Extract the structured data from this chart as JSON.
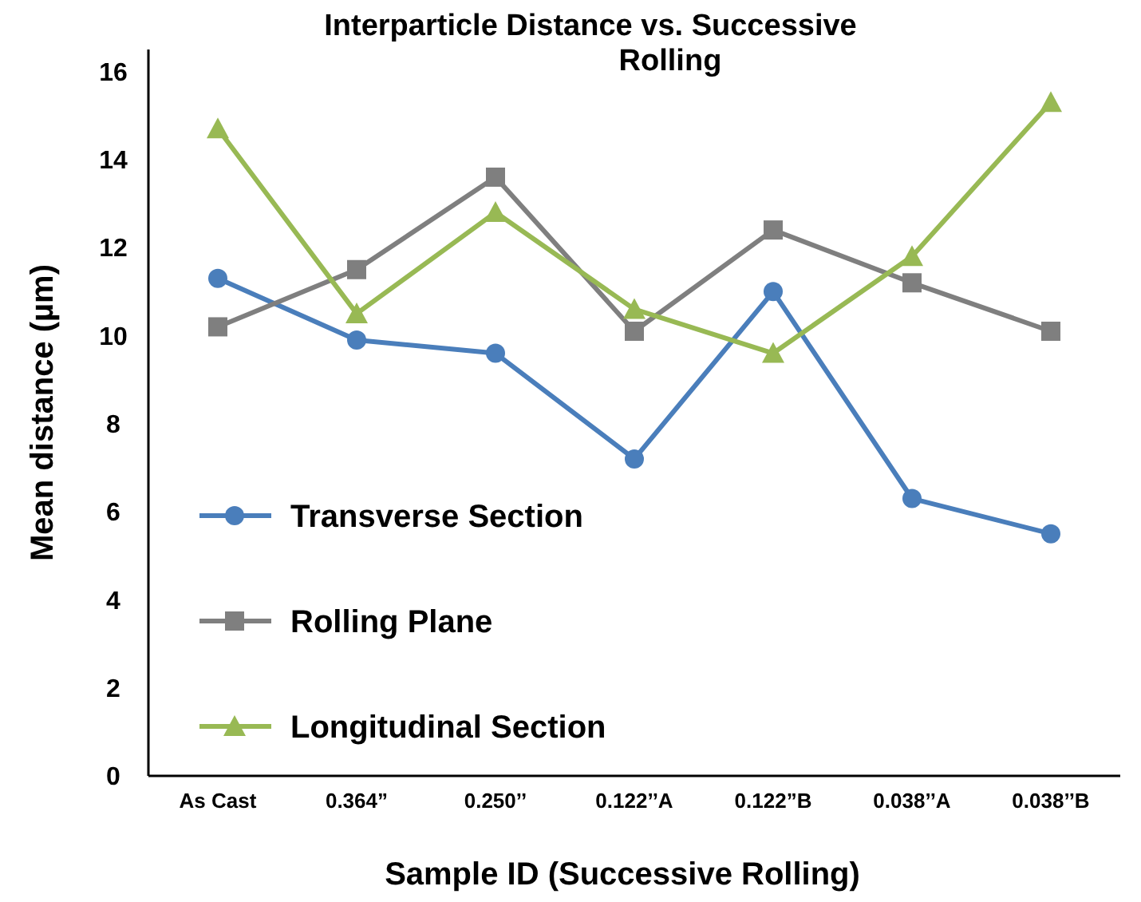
{
  "chart_data": {
    "type": "line",
    "title": "Interparticle Distance vs. Successive Rolling",
    "xlabel": "Sample ID (Successive Rolling)",
    "ylabel": "Mean distance (µm)",
    "categories": [
      "As Cast",
      "0.364”",
      "0.250’’",
      "0.122’’A",
      "0.122”B",
      "0.038’’A",
      "0.038’’B"
    ],
    "series": [
      {
        "name": "Transverse Section",
        "color": "#4a7ebb",
        "marker": "circle",
        "values": [
          11.3,
          9.9,
          9.6,
          7.2,
          11.0,
          6.3,
          5.5
        ]
      },
      {
        "name": "Rolling Plane",
        "color": "#7f7f7f",
        "marker": "square",
        "values": [
          10.2,
          11.5,
          13.6,
          10.1,
          12.4,
          11.2,
          10.1
        ]
      },
      {
        "name": "Longitudinal Section",
        "color": "#98b954",
        "marker": "triangle",
        "values": [
          14.7,
          10.5,
          12.8,
          10.6,
          9.6,
          11.8,
          15.3
        ]
      }
    ],
    "ylim": [
      0,
      16.5
    ],
    "yticks": [
      0,
      2,
      4,
      6,
      8,
      10,
      12,
      14,
      16
    ],
    "grid": false,
    "legend": "bottom left",
    "line_style": "solid"
  }
}
